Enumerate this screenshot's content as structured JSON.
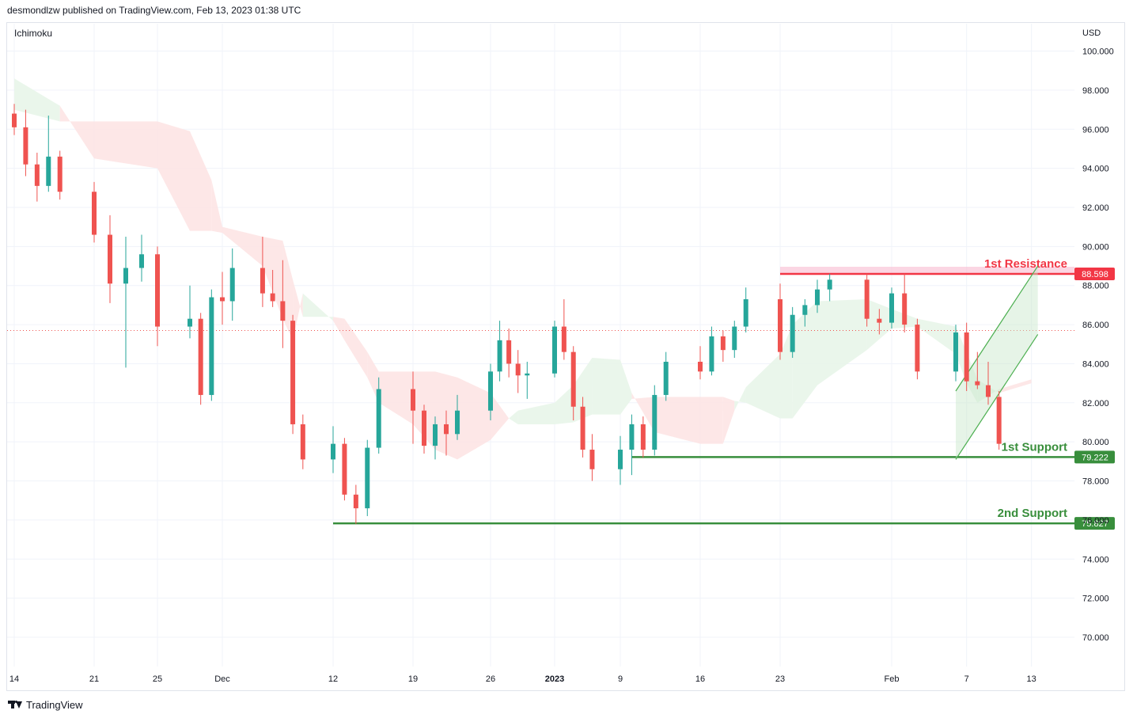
{
  "header": {
    "publisher_line": "desmondlzw published on TradingView.com, Feb 13, 2023 01:38 UTC"
  },
  "indicator": {
    "label": "Ichimoku"
  },
  "footer": {
    "brand": "TradingView",
    "logo_icon": "tradingview-logo-icon"
  },
  "colors": {
    "up": "#26a69a",
    "down": "#ef5350",
    "cloud_bull": "#e8f5e9",
    "cloud_bear": "#fde4e4",
    "resistance": "#f23645",
    "support": "#388e3c",
    "grid": "#f0f3fa",
    "text": "#131722",
    "last_price": "#ef5350",
    "channel": "#4caf50"
  },
  "chart_data": {
    "type": "candlestick",
    "symbol_currency": "USD",
    "y_axis": {
      "label": "USD",
      "ticks": [
        "100.000",
        "98.000",
        "96.000",
        "94.000",
        "92.000",
        "90.000",
        "88.000",
        "86.000",
        "84.000",
        "82.000",
        "80.000",
        "78.000",
        "76.000",
        "74.000",
        "72.000",
        "70.000"
      ],
      "ylim": [
        68.5,
        101.4
      ]
    },
    "x_axis": {
      "ticks": [
        "14",
        "21",
        "25",
        "Dec",
        "12",
        "19",
        "26",
        "2023",
        "9",
        "16",
        "23",
        "Feb",
        "7",
        "13"
      ],
      "bold_ticks": [
        "2023"
      ]
    },
    "levels": [
      {
        "name": "1st Resistance",
        "value": "88.598",
        "price": 88.598,
        "kind": "resistance",
        "start_date": "Jan 23"
      },
      {
        "name": "1st Support",
        "value": "79.222",
        "price": 79.222,
        "kind": "support",
        "start_date": "Jan 10"
      },
      {
        "name": "2nd Support",
        "value": "75.827",
        "price": 75.827,
        "kind": "support",
        "start_date": "Dec 12"
      }
    ],
    "last_price": 85.7,
    "channel": {
      "from_date": "Feb 6",
      "to_date": "Feb 13",
      "lower_start": 79.1,
      "lower_end": 85.5,
      "upper_start": 82.6,
      "upper_end": 89.0
    },
    "candles": [
      {
        "d": "Nov 14",
        "o": 96.8,
        "h": 97.3,
        "l": 95.7,
        "c": 96.1
      },
      {
        "d": "Nov 15",
        "o": 96.1,
        "h": 97.0,
        "l": 93.6,
        "c": 94.2
      },
      {
        "d": "Nov 16",
        "o": 94.2,
        "h": 94.8,
        "l": 92.3,
        "c": 93.1
      },
      {
        "d": "Nov 17",
        "o": 93.1,
        "h": 96.7,
        "l": 92.8,
        "c": 94.6
      },
      {
        "d": "Nov 18",
        "o": 94.6,
        "h": 94.9,
        "l": 92.4,
        "c": 92.8
      },
      {
        "d": "Nov 21",
        "o": 92.8,
        "h": 93.3,
        "l": 90.2,
        "c": 90.6
      },
      {
        "d": "Nov 22",
        "o": 90.6,
        "h": 91.6,
        "l": 87.1,
        "c": 88.1
      },
      {
        "d": "Nov 23",
        "o": 88.1,
        "h": 90.5,
        "l": 83.8,
        "c": 88.9
      },
      {
        "d": "Nov 24",
        "o": 88.9,
        "h": 90.6,
        "l": 88.2,
        "c": 89.6
      },
      {
        "d": "Nov 25",
        "o": 89.6,
        "h": 90.0,
        "l": 84.9,
        "c": 85.9
      },
      {
        "d": "Nov 28",
        "o": 85.9,
        "h": 88.0,
        "l": 85.3,
        "c": 86.3
      },
      {
        "d": "Nov 29",
        "o": 86.3,
        "h": 86.6,
        "l": 81.9,
        "c": 82.4
      },
      {
        "d": "Nov 30",
        "o": 82.4,
        "h": 87.8,
        "l": 82.1,
        "c": 87.4
      },
      {
        "d": "Dec 1",
        "o": 87.4,
        "h": 88.7,
        "l": 86.0,
        "c": 87.2
      },
      {
        "d": "Dec 2",
        "o": 87.2,
        "h": 89.9,
        "l": 86.2,
        "c": 88.9
      },
      {
        "d": "Dec 5",
        "o": 88.9,
        "h": 90.5,
        "l": 86.9,
        "c": 87.6
      },
      {
        "d": "Dec 6",
        "o": 87.6,
        "h": 88.8,
        "l": 86.9,
        "c": 87.2
      },
      {
        "d": "Dec 7",
        "o": 87.2,
        "h": 89.3,
        "l": 84.8,
        "c": 86.2
      },
      {
        "d": "Dec 8",
        "o": 86.2,
        "h": 86.5,
        "l": 80.4,
        "c": 80.9
      },
      {
        "d": "Dec 9",
        "o": 80.9,
        "h": 81.4,
        "l": 78.6,
        "c": 79.1
      },
      {
        "d": "Dec 12",
        "o": 79.1,
        "h": 80.8,
        "l": 78.4,
        "c": 79.9
      },
      {
        "d": "Dec 13",
        "o": 79.9,
        "h": 80.2,
        "l": 77.0,
        "c": 77.3
      },
      {
        "d": "Dec 14",
        "o": 77.3,
        "h": 77.8,
        "l": 75.8,
        "c": 76.6
      },
      {
        "d": "Dec 15",
        "o": 76.6,
        "h": 80.1,
        "l": 76.2,
        "c": 79.7
      },
      {
        "d": "Dec 16",
        "o": 79.7,
        "h": 83.3,
        "l": 79.4,
        "c": 82.7
      },
      {
        "d": "Dec 19",
        "o": 82.7,
        "h": 83.6,
        "l": 79.9,
        "c": 81.6
      },
      {
        "d": "Dec 20",
        "o": 81.6,
        "h": 81.9,
        "l": 79.4,
        "c": 79.8
      },
      {
        "d": "Dec 21",
        "o": 79.8,
        "h": 81.3,
        "l": 79.1,
        "c": 80.9
      },
      {
        "d": "Dec 22",
        "o": 80.9,
        "h": 81.6,
        "l": 79.3,
        "c": 80.4
      },
      {
        "d": "Dec 23",
        "o": 80.4,
        "h": 82.4,
        "l": 80.1,
        "c": 81.6
      },
      {
        "d": "Dec 26",
        "o": 81.6,
        "h": 84.0,
        "l": 81.1,
        "c": 83.6
      },
      {
        "d": "Dec 27",
        "o": 83.6,
        "h": 86.2,
        "l": 83.1,
        "c": 85.2
      },
      {
        "d": "Dec 28",
        "o": 85.2,
        "h": 85.8,
        "l": 83.3,
        "c": 84.0
      },
      {
        "d": "Dec 29",
        "o": 84.0,
        "h": 84.7,
        "l": 82.5,
        "c": 83.4
      },
      {
        "d": "Dec 30",
        "o": 83.4,
        "h": 84.1,
        "l": 82.2,
        "c": 83.5
      },
      {
        "d": "Jan 2",
        "o": 83.5,
        "h": 86.2,
        "l": 83.3,
        "c": 85.9
      },
      {
        "d": "Jan 3",
        "o": 85.9,
        "h": 87.3,
        "l": 84.2,
        "c": 84.6
      },
      {
        "d": "Jan 4",
        "o": 84.6,
        "h": 84.9,
        "l": 81.1,
        "c": 81.8
      },
      {
        "d": "Jan 5",
        "o": 81.8,
        "h": 82.3,
        "l": 79.2,
        "c": 79.6
      },
      {
        "d": "Jan 6",
        "o": 79.6,
        "h": 80.4,
        "l": 78.0,
        "c": 78.6
      },
      {
        "d": "Jan 9",
        "o": 78.6,
        "h": 80.3,
        "l": 77.8,
        "c": 79.6
      },
      {
        "d": "Jan 10",
        "o": 79.6,
        "h": 81.4,
        "l": 78.3,
        "c": 80.9
      },
      {
        "d": "Jan 11",
        "o": 80.9,
        "h": 81.3,
        "l": 79.2,
        "c": 79.6
      },
      {
        "d": "Jan 12",
        "o": 79.6,
        "h": 82.9,
        "l": 79.3,
        "c": 82.4
      },
      {
        "d": "Jan 13",
        "o": 82.4,
        "h": 84.6,
        "l": 82.1,
        "c": 84.1
      },
      {
        "d": "Jan 16",
        "o": 84.1,
        "h": 84.9,
        "l": 83.2,
        "c": 83.6
      },
      {
        "d": "Jan 17",
        "o": 83.6,
        "h": 85.9,
        "l": 83.4,
        "c": 85.4
      },
      {
        "d": "Jan 18",
        "o": 85.4,
        "h": 85.7,
        "l": 84.1,
        "c": 84.7
      },
      {
        "d": "Jan 19",
        "o": 84.7,
        "h": 86.2,
        "l": 84.3,
        "c": 85.9
      },
      {
        "d": "Jan 20",
        "o": 85.9,
        "h": 87.9,
        "l": 85.6,
        "c": 87.3
      },
      {
        "d": "Jan 23",
        "o": 87.3,
        "h": 88.1,
        "l": 84.2,
        "c": 84.6
      },
      {
        "d": "Jan 24",
        "o": 84.6,
        "h": 86.9,
        "l": 84.3,
        "c": 86.5
      },
      {
        "d": "Jan 25",
        "o": 86.5,
        "h": 87.3,
        "l": 85.9,
        "c": 87.0
      },
      {
        "d": "Jan 26",
        "o": 87.0,
        "h": 88.3,
        "l": 86.6,
        "c": 87.8
      },
      {
        "d": "Jan 27",
        "o": 87.8,
        "h": 88.6,
        "l": 87.2,
        "c": 88.3
      },
      {
        "d": "Jan 30",
        "o": 88.3,
        "h": 88.6,
        "l": 85.9,
        "c": 86.3
      },
      {
        "d": "Jan 31",
        "o": 86.3,
        "h": 86.8,
        "l": 85.5,
        "c": 86.1
      },
      {
        "d": "Feb 1",
        "o": 86.1,
        "h": 87.9,
        "l": 85.8,
        "c": 87.6
      },
      {
        "d": "Feb 2",
        "o": 87.6,
        "h": 88.6,
        "l": 85.6,
        "c": 86.0
      },
      {
        "d": "Feb 3",
        "o": 86.0,
        "h": 86.3,
        "l": 83.2,
        "c": 83.6
      },
      {
        "d": "Feb 6",
        "o": 83.6,
        "h": 86.0,
        "l": 83.1,
        "c": 85.6
      },
      {
        "d": "Feb 7",
        "o": 85.6,
        "h": 86.1,
        "l": 82.6,
        "c": 83.1
      },
      {
        "d": "Feb 8",
        "o": 83.1,
        "h": 84.6,
        "l": 82.7,
        "c": 82.9
      },
      {
        "d": "Feb 9",
        "o": 82.9,
        "h": 84.1,
        "l": 81.9,
        "c": 82.3
      },
      {
        "d": "Feb 10",
        "o": 82.3,
        "h": 82.6,
        "l": 79.6,
        "c": 79.9
      }
    ],
    "cloud": [
      {
        "d": "Nov 14",
        "a": 98.6,
        "b": 97.0
      },
      {
        "d": "Nov 18",
        "a": 97.2,
        "b": 96.4
      },
      {
        "d": "Nov 21",
        "a": 94.5,
        "b": 96.4
      },
      {
        "d": "Nov 25",
        "a": 94.0,
        "b": 96.4
      },
      {
        "d": "Nov 28",
        "a": 90.8,
        "b": 95.9
      },
      {
        "d": "Nov 30",
        "a": 90.8,
        "b": 93.4
      },
      {
        "d": "Dec 1",
        "a": 90.7,
        "b": 91.0
      },
      {
        "d": "Dec 5",
        "a": 89.0,
        "b": 90.5
      },
      {
        "d": "Dec 7",
        "a": 86.3,
        "b": 90.3
      },
      {
        "d": "Dec 8",
        "a": 85.2,
        "b": 88.3
      },
      {
        "d": "Dec 9",
        "a": 87.6,
        "b": 86.4
      },
      {
        "d": "Dec 12",
        "a": 86.2,
        "b": 86.4
      },
      {
        "d": "Dec 13",
        "a": 85.2,
        "b": 86.3
      },
      {
        "d": "Dec 15",
        "a": 83.3,
        "b": 84.6
      },
      {
        "d": "Dec 16",
        "a": 82.0,
        "b": 83.6
      },
      {
        "d": "Dec 19",
        "a": 80.9,
        "b": 83.6
      },
      {
        "d": "Dec 21",
        "a": 79.6,
        "b": 83.6
      },
      {
        "d": "Dec 23",
        "a": 79.1,
        "b": 83.3
      },
      {
        "d": "Dec 26",
        "a": 80.1,
        "b": 82.5
      },
      {
        "d": "Dec 28",
        "a": 81.2,
        "b": 81.2
      },
      {
        "d": "Dec 29",
        "a": 81.6,
        "b": 80.9
      },
      {
        "d": "Jan 2",
        "a": 82.0,
        "b": 80.9
      },
      {
        "d": "Jan 4",
        "a": 82.9,
        "b": 81.0
      },
      {
        "d": "Jan 6",
        "a": 84.3,
        "b": 81.4
      },
      {
        "d": "Jan 9",
        "a": 84.2,
        "b": 81.4
      },
      {
        "d": "Jan 10",
        "a": 82.5,
        "b": 82.2
      },
      {
        "d": "Jan 12",
        "a": 80.5,
        "b": 82.3
      },
      {
        "d": "Jan 16",
        "a": 79.9,
        "b": 82.3
      },
      {
        "d": "Jan 18",
        "a": 79.9,
        "b": 82.3
      },
      {
        "d": "Jan 19",
        "a": 81.6,
        "b": 82.1
      },
      {
        "d": "Jan 20",
        "a": 82.8,
        "b": 82.0
      },
      {
        "d": "Jan 23",
        "a": 84.5,
        "b": 81.2
      },
      {
        "d": "Jan 24",
        "a": 86.0,
        "b": 81.2
      },
      {
        "d": "Jan 26",
        "a": 87.2,
        "b": 82.9
      },
      {
        "d": "Jan 30",
        "a": 87.3,
        "b": 84.7
      },
      {
        "d": "Feb 1",
        "a": 86.8,
        "b": 85.8
      },
      {
        "d": "Feb 3",
        "a": 86.3,
        "b": 85.9
      },
      {
        "d": "Feb 6",
        "a": 85.9,
        "b": 84.5
      },
      {
        "d": "Feb 7",
        "a": 84.6,
        "b": 83.0
      },
      {
        "d": "Feb 8",
        "a": 83.2,
        "b": 82.0
      },
      {
        "d": "Feb 10",
        "a": 82.5,
        "b": 82.7
      },
      {
        "d": "Feb 13",
        "a": 83.0,
        "b": 83.2
      }
    ]
  }
}
